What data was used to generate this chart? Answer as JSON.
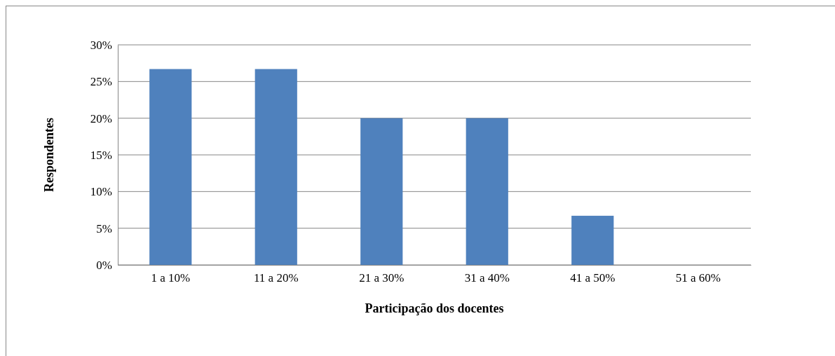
{
  "chart_data": {
    "type": "bar",
    "xlabel": "Participação dos docentes",
    "ylabel": "Respondentes",
    "categories": [
      "1 a 10%",
      "11 a 20%",
      "21 a 30%",
      "31 a 40%",
      "41 a 50%",
      "51 a 60%"
    ],
    "values": [
      26.7,
      26.7,
      20,
      20,
      6.7,
      0
    ],
    "color": "#4f81bd",
    "ylim": [
      0,
      30
    ],
    "yticks": [
      {
        "value": 0,
        "label": "0%"
      },
      {
        "value": 5,
        "label": "5%"
      },
      {
        "value": 10,
        "label": "10%"
      },
      {
        "value": 15,
        "label": "15%"
      },
      {
        "value": 20,
        "label": "20%"
      },
      {
        "value": 25,
        "label": "25%"
      },
      {
        "value": 30,
        "label": "30%"
      }
    ],
    "grid": "y"
  }
}
